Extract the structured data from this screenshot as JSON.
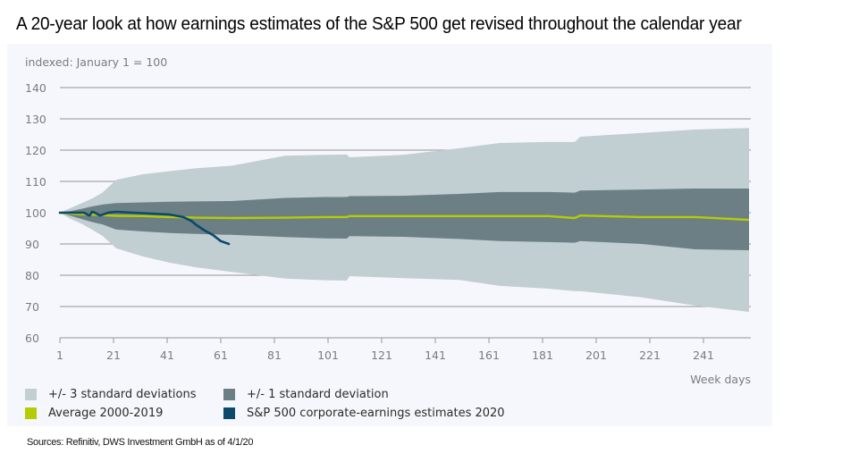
{
  "headline": "A 20-year look at how earnings estimates of the S&P 500 get revised throughout the calendar year",
  "sources": "Sources: Refinitiv, DWS Investment GmbH  as of 4/1/20",
  "colors": {
    "panel_bg": "#f6f7fc",
    "band_3sd": "#c1ced2",
    "band_1sd": "#6b7f84",
    "average": "#b5cc05",
    "sp500": "#0b4a6a",
    "grid": "#a6a6aa",
    "axis_text": "#7b7b80"
  },
  "legend": [
    {
      "label": "+/- 3 standard deviations",
      "color": "#c1ced2"
    },
    {
      "label": "+/- 1 standard deviation",
      "color": "#6b7f84"
    },
    {
      "label": "Average 2000-2019",
      "color": "#b5cc05"
    },
    {
      "label": "S&P 500 corporate-earnings estimates 2020",
      "color": "#0b4a6a"
    }
  ],
  "chart_data": {
    "type": "area",
    "title": "A 20-year look at how earnings estimates of the S&P 500 get revised throughout the calendar year",
    "ylabel": "indexed: January 1 = 100",
    "xlabel": "Week days",
    "ylim": [
      60,
      140
    ],
    "yticks": [
      60,
      70,
      80,
      90,
      100,
      110,
      120,
      130,
      140
    ],
    "xlim": [
      1,
      261
    ],
    "xticks": [
      1,
      21,
      41,
      61,
      81,
      101,
      121,
      141,
      161,
      181,
      201,
      221,
      241
    ],
    "grid": true,
    "legend_position": "bottom",
    "x": [
      1,
      5,
      9,
      13,
      17,
      22,
      32,
      42,
      52,
      65,
      85,
      100,
      108,
      109,
      129,
      150,
      165,
      183,
      193,
      195,
      218,
      238,
      258
    ],
    "series": [
      {
        "name": "+/- 3 standard deviations (upper)",
        "kind": "band_upper",
        "values": [
          100,
          101.5,
          103,
          104.5,
          106.5,
          110.5,
          112.3,
          113.3,
          114.2,
          115,
          118.2,
          118.5,
          118.6,
          117.7,
          118.5,
          120.6,
          122.3,
          122.6,
          122.6,
          124.3,
          125.5,
          126.6,
          127.1
        ]
      },
      {
        "name": "+/- 3 standard deviations (lower)",
        "kind": "band_lower",
        "values": [
          100,
          98,
          96.5,
          94.6,
          92.5,
          88.6,
          86,
          84,
          82.5,
          81.1,
          78.9,
          78.4,
          78.3,
          79.7,
          79.1,
          78.5,
          76.6,
          75.7,
          74.9,
          74.9,
          72.9,
          70.3,
          68.3
        ]
      },
      {
        "name": "+/- 1 standard deviation (upper)",
        "kind": "band_upper",
        "values": [
          100,
          100.5,
          101.2,
          102,
          102.6,
          103.1,
          103.3,
          103.5,
          103.6,
          103.7,
          104.7,
          105,
          105,
          105.3,
          105.4,
          106,
          106.6,
          106.6,
          106.4,
          107.1,
          107.4,
          107.7,
          107.7
        ]
      },
      {
        "name": "+/- 1 standard deviation (lower)",
        "kind": "band_lower",
        "values": [
          100,
          99,
          98,
          97,
          96.2,
          94.6,
          94,
          93.5,
          93.2,
          92.9,
          92.2,
          91.8,
          91.7,
          92.5,
          92.3,
          91.6,
          90.9,
          90.6,
          90.4,
          90.9,
          90,
          88.3,
          88
        ]
      },
      {
        "name": "Average 2000-2019",
        "kind": "line",
        "values": [
          100,
          99.7,
          99.5,
          99.4,
          99.2,
          99,
          98.9,
          98.6,
          98.4,
          98.3,
          98.4,
          98.6,
          98.6,
          98.9,
          98.9,
          98.9,
          98.9,
          98.9,
          98.3,
          99.1,
          98.6,
          98.6,
          97.7
        ]
      }
    ],
    "sp500_2020": {
      "name": "S&P 500 corporate-earnings estimates 2020",
      "x": [
        1,
        10,
        12,
        13,
        14,
        16,
        19,
        22,
        28,
        35,
        42,
        47,
        50,
        52,
        55,
        58,
        61,
        64
      ],
      "values": [
        100,
        100,
        99.1,
        100.3,
        100,
        99.1,
        100,
        100.3,
        100,
        99.7,
        99.4,
        98.6,
        97.4,
        96,
        94.3,
        92.9,
        90.9,
        90
      ]
    }
  }
}
